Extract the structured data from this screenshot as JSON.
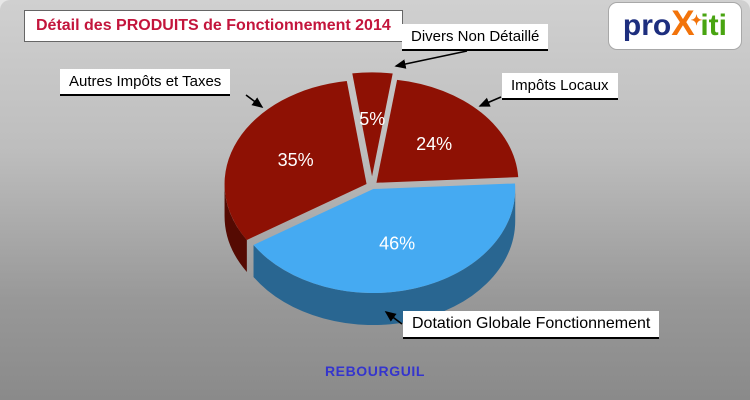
{
  "chart_data": {
    "type": "pie",
    "title": "Détail des PRODUITS de Fonctionnement 2014",
    "style": "3d-exploded",
    "legend_position": "callout-labels",
    "slices": [
      {
        "label": "Divers Non Détaillé",
        "value": 5,
        "display": "5%",
        "color": "#8e1104"
      },
      {
        "label": "Impôts Locaux",
        "value": 24,
        "display": "24%",
        "color": "#8e1104"
      },
      {
        "label": "Dotation Globale Fonctionnement",
        "value": 46,
        "display": "46%",
        "color": "#45aaf2"
      },
      {
        "label": "Autres Impôts et Taxes",
        "value": 35,
        "display": "35%",
        "color": "#8e1104"
      }
    ],
    "colors": {
      "title": "#c3153c",
      "maroon": "#8e1104",
      "blue": "#45aaf2",
      "percent_text": "#ffffff"
    }
  },
  "logo": {
    "parts": [
      {
        "text": "pro",
        "color": "#1d2e7e"
      },
      {
        "text": "X",
        "color": "#f2730a"
      },
      {
        "text": "iti",
        "color": "#49a411"
      }
    ],
    "star": "✦",
    "star_color": "#f2730a"
  },
  "footer": {
    "text": "REBOURGUIL",
    "color": "#3535cd"
  }
}
